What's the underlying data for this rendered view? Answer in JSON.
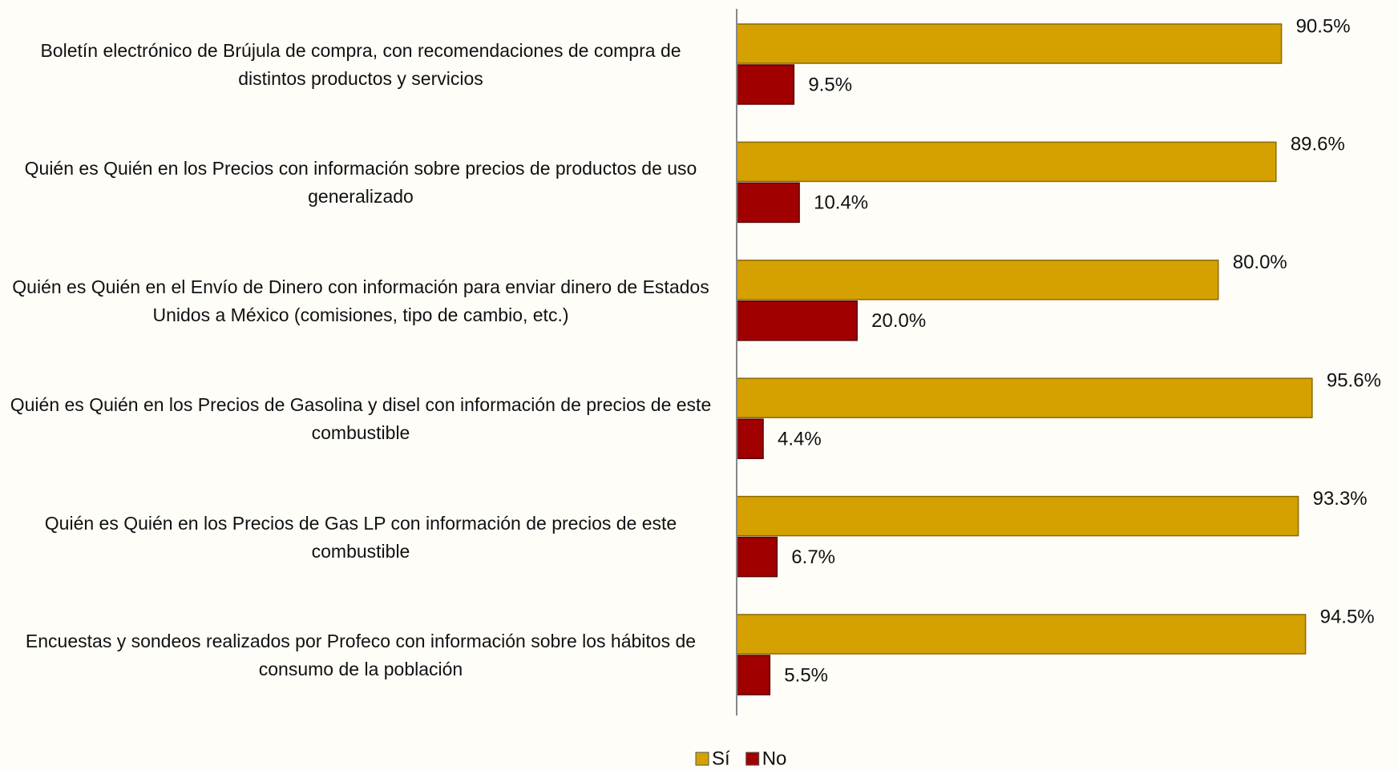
{
  "chart_data": {
    "type": "bar",
    "orientation": "horizontal",
    "categories": [
      "Boletín electrónico de Brújula de compra, con recomendaciones de compra de distintos productos y servicios",
      "Quién es Quién en los Precios con información sobre precios de productos de uso generalizado",
      "Quién es Quién en el Envío de Dinero con información para enviar dinero de Estados Unidos a México (comisiones, tipo de cambio, etc.)",
      "Quién es Quién en los Precios de Gasolina y disel con información de precios de este combustible",
      "Quién es Quién en los Precios de Gas LP con información de precios de este combustible",
      "Encuestas y sondeos realizados por Profeco con información sobre los hábitos de consumo de la población"
    ],
    "series": [
      {
        "name": "Sí",
        "color": "#d4a100",
        "values": [
          90.5,
          89.6,
          80.0,
          95.6,
          93.3,
          94.5
        ],
        "value_labels": [
          "90.5%",
          "89.6%",
          "80.0%",
          "95.6%",
          "93.3%",
          "94.5%"
        ]
      },
      {
        "name": "No",
        "color": "#a00000",
        "values": [
          9.5,
          10.4,
          20.0,
          4.4,
          6.7,
          5.5
        ],
        "value_labels": [
          "9.5%",
          "10.4%",
          "20.0%",
          "4.4%",
          "6.7%",
          "5.5%"
        ]
      }
    ],
    "xlim": [
      0,
      110
    ],
    "legend": "bottom"
  }
}
